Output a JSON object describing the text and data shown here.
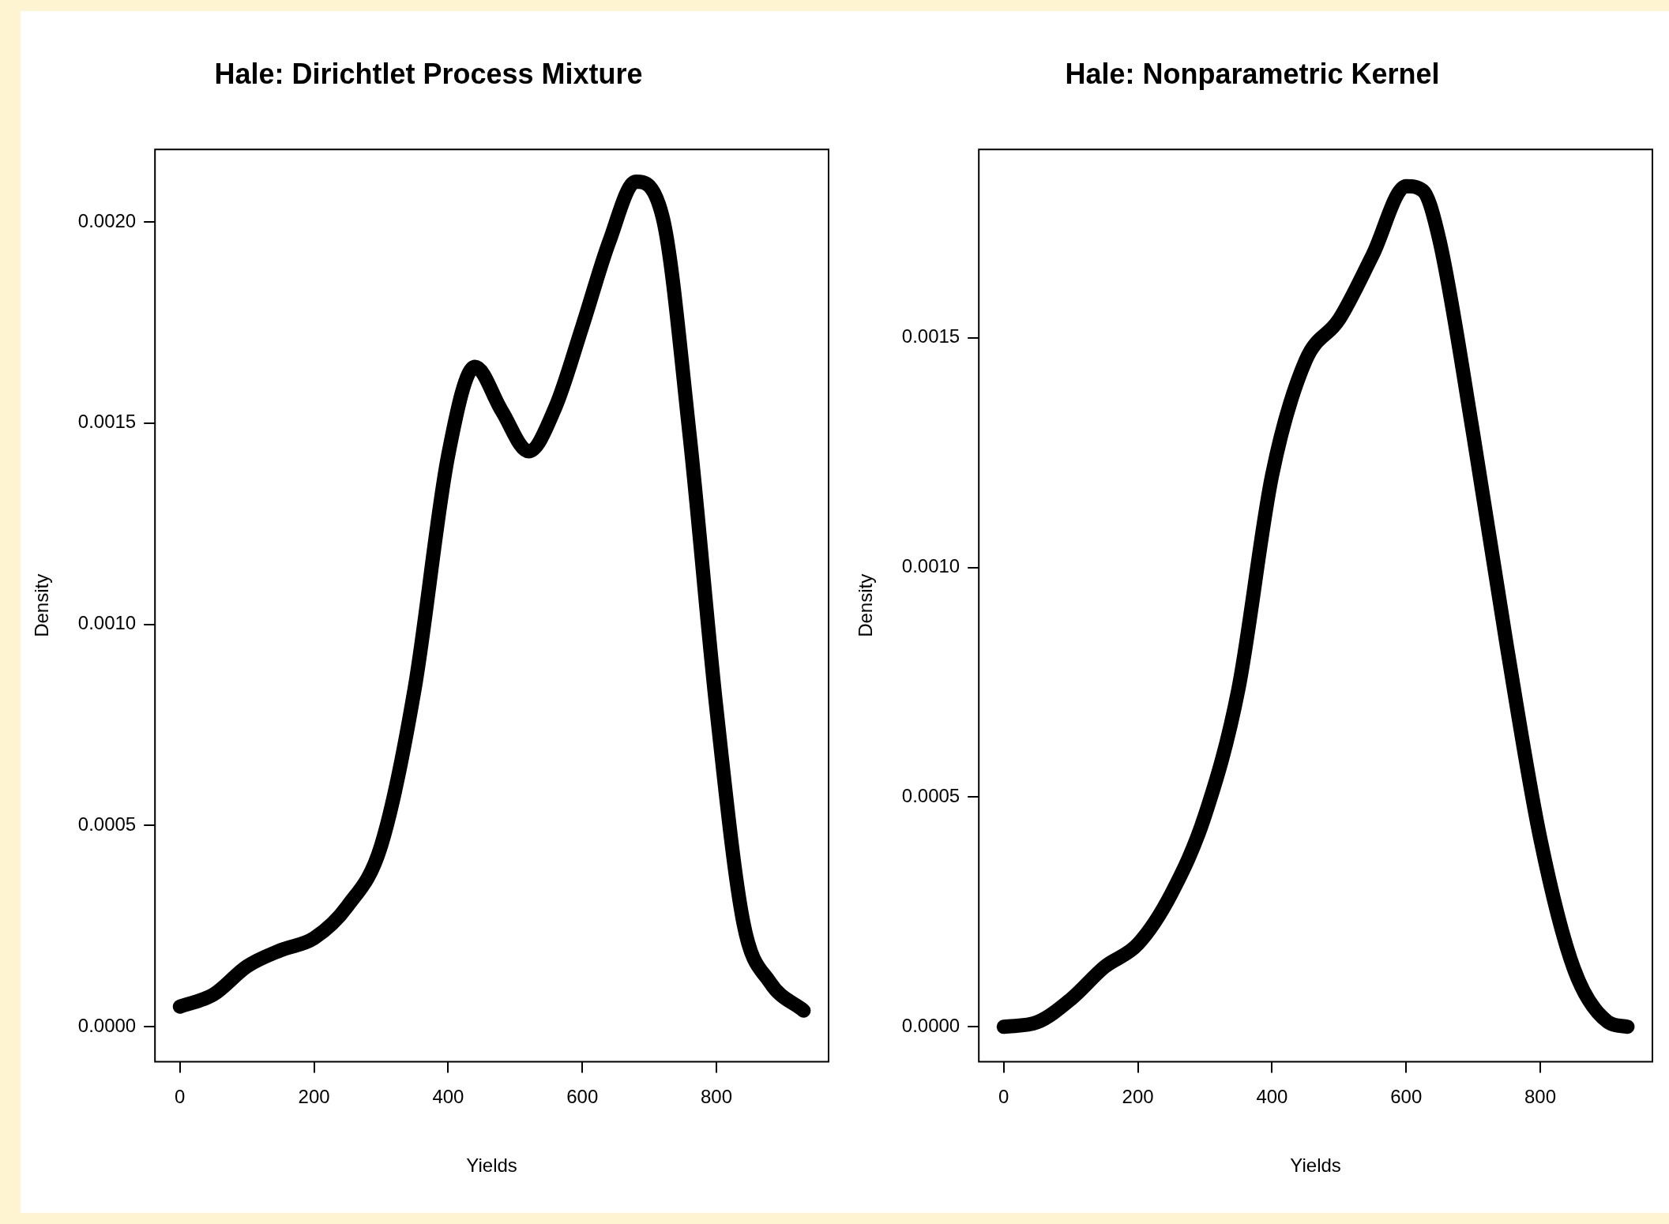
{
  "chart_data": [
    {
      "type": "line",
      "title": "Hale: Dirichtlet Process Mixture",
      "xlabel": "Yields",
      "ylabel": "Density",
      "grid": false,
      "marker": "none",
      "legend": false,
      "xlim": [
        -37.2,
        967.2
      ],
      "xticks": [
        0,
        200,
        400,
        600,
        800
      ],
      "ylim": [
        -8.68e-05,
        0.00218
      ],
      "yticks": [
        {
          "value": 0,
          "label": "0.0000"
        },
        {
          "value": 0.0005,
          "label": "0.0005"
        },
        {
          "value": 0.001,
          "label": "0.0010"
        },
        {
          "value": 0.0015,
          "label": "0.0015"
        },
        {
          "value": 0.002,
          "label": "0.0020"
        }
      ],
      "series": [
        {
          "color": "#000000",
          "x": [
            0,
            50,
            100,
            150,
            200,
            250,
            300,
            350,
            400,
            440,
            480,
            520,
            560,
            600,
            640,
            680,
            720,
            760,
            800,
            840,
            880,
            930
          ],
          "values": [
            5e-05,
            8e-05,
            0.00015,
            0.00019,
            0.00022,
            0.0003,
            0.00045,
            0.00084,
            0.00142,
            0.00164,
            0.00153,
            0.00143,
            0.00154,
            0.00174,
            0.00195,
            0.0021,
            0.00201,
            0.00147,
            0.00079,
            0.00026,
            0.00011,
            4e-05
          ]
        }
      ]
    },
    {
      "type": "line",
      "title": "Hale: Nonparametric Kernel",
      "xlabel": "Yields",
      "ylabel": "Density",
      "grid": false,
      "marker": "none",
      "legend": false,
      "xlim": [
        -37.2,
        967.2
      ],
      "xticks": [
        0,
        200,
        400,
        600,
        800
      ],
      "ylim": [
        -7.59e-05,
        0.00191
      ],
      "yticks": [
        {
          "value": 0,
          "label": "0.0000"
        },
        {
          "value": 0.0005,
          "label": "0.0005"
        },
        {
          "value": 0.001,
          "label": "0.0010"
        },
        {
          "value": 0.0015,
          "label": "0.0015"
        }
      ],
      "series": [
        {
          "color": "#000000",
          "x": [
            0,
            50,
            100,
            150,
            200,
            250,
            300,
            350,
            400,
            450,
            500,
            550,
            600,
            625,
            650,
            700,
            750,
            800,
            850,
            900,
            930
          ],
          "values": [
            0,
            1e-05,
            6e-05,
            0.00013,
            0.00018,
            0.00029,
            0.00046,
            0.000736,
            0.0012,
            0.00145,
            0.00154,
            0.00168,
            0.00183,
            0.00182,
            0.00171,
            0.00129,
            0.00083,
            0.00041,
            0.000127,
            1.15e-05,
            0
          ]
        }
      ]
    }
  ]
}
